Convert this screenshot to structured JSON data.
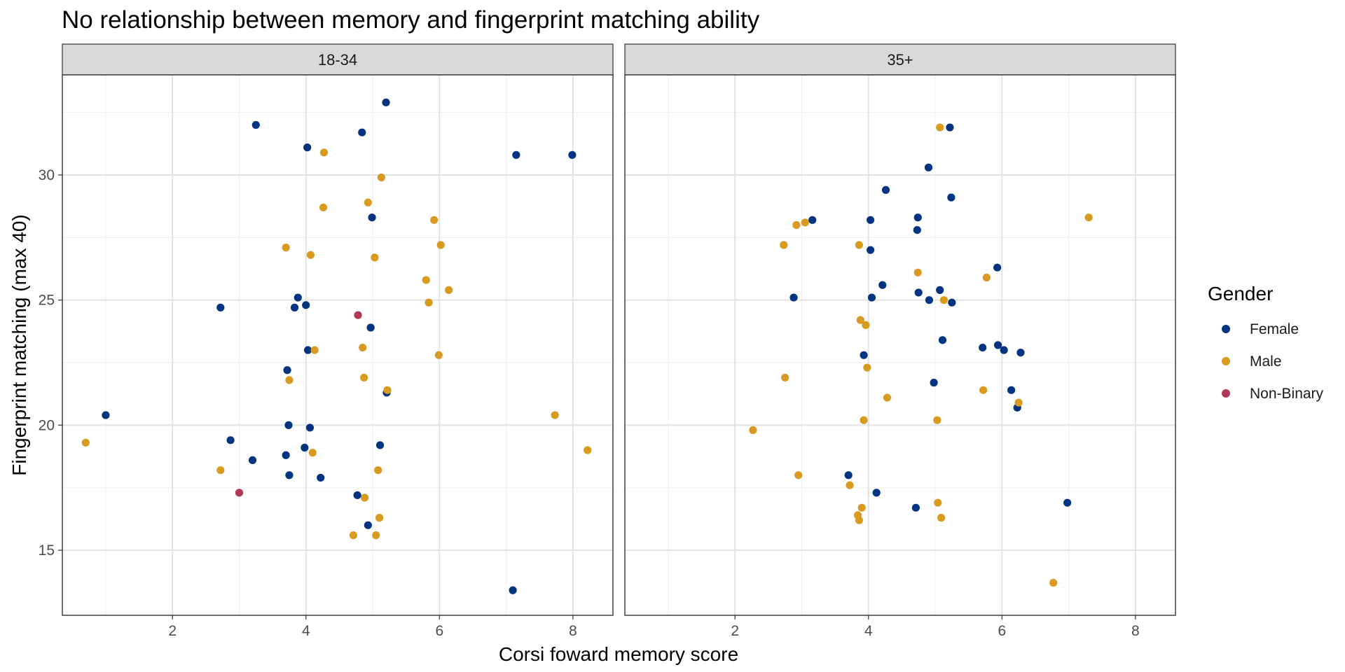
{
  "chart_data": {
    "type": "scatter",
    "title": "No relationship between memory and fingerprint matching ability",
    "xlabel": "Corsi foward memory score",
    "ylabel": "Fingerprint matching (max 40)",
    "xlim": [
      0.35,
      8.6
    ],
    "ylim": [
      12.4,
      34.0
    ],
    "x_ticks": [
      "2",
      "4",
      "6",
      "8"
    ],
    "y_ticks": [
      "15",
      "20",
      "25",
      "30"
    ],
    "grid": true,
    "legend": {
      "title": "Gender",
      "position": "right",
      "entries": [
        {
          "name": "Female",
          "color": "#003380"
        },
        {
          "name": "Male",
          "color": "#d99a20"
        },
        {
          "name": "Non-Binary",
          "color": "#b03a55"
        }
      ]
    },
    "facets": [
      {
        "label": "18-34",
        "series": [
          {
            "name": "Female",
            "points": [
              [
                1.0,
                20.4
              ],
              [
                2.72,
                24.7
              ],
              [
                2.87,
                19.4
              ],
              [
                3.2,
                18.6
              ],
              [
                3.25,
                32.0
              ],
              [
                3.7,
                18.8
              ],
              [
                3.72,
                22.2
              ],
              [
                3.74,
                20.0
              ],
              [
                3.75,
                18.0
              ],
              [
                3.83,
                24.7
              ],
              [
                3.88,
                25.1
              ],
              [
                3.98,
                19.1
              ],
              [
                4.0,
                24.8
              ],
              [
                4.02,
                31.1
              ],
              [
                4.03,
                23.0
              ],
              [
                4.06,
                19.9
              ],
              [
                4.22,
                17.9
              ],
              [
                4.77,
                17.2
              ],
              [
                4.84,
                31.7
              ],
              [
                4.93,
                16.0
              ],
              [
                4.97,
                23.9
              ],
              [
                4.99,
                28.3
              ],
              [
                5.11,
                19.2
              ],
              [
                5.2,
                32.9
              ],
              [
                5.21,
                21.3
              ],
              [
                7.1,
                13.4
              ],
              [
                7.15,
                30.8
              ],
              [
                7.99,
                30.8
              ]
            ]
          },
          {
            "name": "Male",
            "points": [
              [
                0.7,
                19.3
              ],
              [
                2.72,
                18.2
              ],
              [
                3.7,
                27.1
              ],
              [
                3.75,
                21.8
              ],
              [
                4.07,
                26.8
              ],
              [
                4.1,
                18.9
              ],
              [
                4.13,
                23.0
              ],
              [
                4.26,
                28.7
              ],
              [
                4.27,
                30.9
              ],
              [
                4.71,
                15.6
              ],
              [
                4.85,
                23.1
              ],
              [
                4.87,
                21.9
              ],
              [
                4.88,
                17.1
              ],
              [
                4.93,
                28.9
              ],
              [
                5.03,
                26.7
              ],
              [
                5.05,
                15.6
              ],
              [
                5.08,
                18.2
              ],
              [
                5.1,
                16.3
              ],
              [
                5.13,
                29.9
              ],
              [
                5.22,
                21.4
              ],
              [
                5.8,
                25.8
              ],
              [
                5.84,
                24.9
              ],
              [
                5.92,
                28.2
              ],
              [
                5.99,
                22.8
              ],
              [
                6.02,
                27.2
              ],
              [
                6.14,
                25.4
              ],
              [
                7.73,
                20.4
              ],
              [
                8.22,
                19.0
              ]
            ]
          },
          {
            "name": "Non-Binary",
            "points": [
              [
                3.0,
                17.3
              ],
              [
                4.78,
                24.4
              ]
            ]
          }
        ]
      },
      {
        "label": "35+",
        "series": [
          {
            "name": "Female",
            "points": [
              [
                2.88,
                25.1
              ],
              [
                3.16,
                28.2
              ],
              [
                3.7,
                18.0
              ],
              [
                3.93,
                22.8
              ],
              [
                4.03,
                28.2
              ],
              [
                4.03,
                27.0
              ],
              [
                4.05,
                25.1
              ],
              [
                4.12,
                17.3
              ],
              [
                4.21,
                25.6
              ],
              [
                4.26,
                29.4
              ],
              [
                4.71,
                16.7
              ],
              [
                4.73,
                27.8
              ],
              [
                4.74,
                28.3
              ],
              [
                4.75,
                25.3
              ],
              [
                4.9,
                30.3
              ],
              [
                4.91,
                25.0
              ],
              [
                4.98,
                21.7
              ],
              [
                5.07,
                25.4
              ],
              [
                5.11,
                23.4
              ],
              [
                5.22,
                31.9
              ],
              [
                5.24,
                29.1
              ],
              [
                5.25,
                24.9
              ],
              [
                5.71,
                23.1
              ],
              [
                5.93,
                26.3
              ],
              [
                5.94,
                23.2
              ],
              [
                6.03,
                23.0
              ],
              [
                6.14,
                21.4
              ],
              [
                6.23,
                20.7
              ],
              [
                6.28,
                22.9
              ],
              [
                6.98,
                16.9
              ]
            ]
          },
          {
            "name": "Male",
            "points": [
              [
                2.27,
                19.8
              ],
              [
                2.73,
                27.2
              ],
              [
                2.75,
                21.9
              ],
              [
                2.92,
                28.0
              ],
              [
                2.95,
                18.0
              ],
              [
                3.05,
                28.1
              ],
              [
                3.72,
                17.6
              ],
              [
                3.84,
                16.4
              ],
              [
                3.86,
                16.2
              ],
              [
                3.86,
                27.2
              ],
              [
                3.88,
                24.2
              ],
              [
                3.9,
                16.7
              ],
              [
                3.93,
                20.2
              ],
              [
                3.96,
                24.0
              ],
              [
                3.98,
                22.3
              ],
              [
                4.28,
                21.1
              ],
              [
                4.74,
                26.1
              ],
              [
                5.03,
                20.2
              ],
              [
                5.04,
                16.9
              ],
              [
                5.07,
                31.9
              ],
              [
                5.09,
                16.3
              ],
              [
                5.13,
                25.0
              ],
              [
                5.72,
                21.4
              ],
              [
                5.77,
                25.9
              ],
              [
                6.25,
                20.9
              ],
              [
                6.77,
                13.7
              ],
              [
                7.3,
                28.3
              ]
            ]
          }
        ]
      }
    ]
  }
}
